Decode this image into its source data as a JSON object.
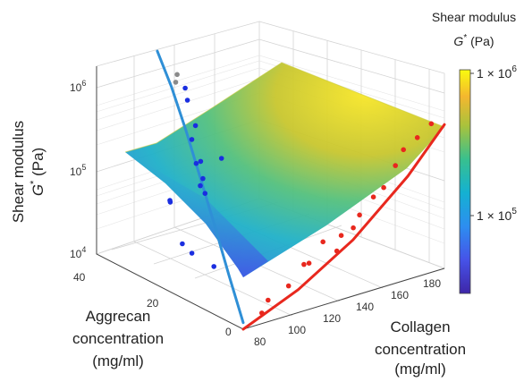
{
  "chart_data": {
    "type": "surface3d",
    "title": "",
    "zlabel_line1": "Shear modulus",
    "zlabel_symbol": "G",
    "zlabel_sup": "*",
    "zlabel_unit": " (Pa)",
    "xlabel": [
      "Collagen",
      "concentration",
      "(mg/ml)"
    ],
    "ylabel": [
      "Aggrecan",
      "concentration",
      "(mg/ml)"
    ],
    "xlim": [
      80,
      190
    ],
    "ylim": [
      0,
      50
    ],
    "zlim": [
      10000,
      2000000
    ],
    "zscale": "log",
    "x_ticks": [
      "80",
      "100",
      "120",
      "140",
      "160",
      "180"
    ],
    "y_ticks": [
      "0",
      "20",
      "40"
    ],
    "z_ticks": [
      {
        "base": "10",
        "exp": "4"
      },
      {
        "base": "10",
        "exp": "5"
      },
      {
        "base": "10",
        "exp": "6"
      }
    ],
    "colorbar": {
      "title_line1": "Shear modulus",
      "title_symbol": "G",
      "title_sup": "*",
      "title_unit": " (Pa)",
      "ticks": [
        {
          "base": "1 × 10",
          "exp": "5"
        },
        {
          "base": "1 × 10",
          "exp": "6"
        }
      ],
      "range": [
        30000,
        1000000
      ],
      "colormap": "parula"
    },
    "series": [
      {
        "kind": "scatter",
        "color": "#1a2ee0",
        "points": [
          {
            "x": 80,
            "y": 10,
            "z": 38000
          },
          {
            "x": 82,
            "y": 22,
            "z": 42000
          },
          {
            "x": 84,
            "y": 20,
            "z": 34000
          },
          {
            "x": 85,
            "y": 28,
            "z": 100000
          },
          {
            "x": 88,
            "y": 30,
            "z": 92000
          },
          {
            "x": 88,
            "y": 18,
            "z": 185000
          },
          {
            "x": 90,
            "y": 20,
            "z": 250000
          },
          {
            "x": 92,
            "y": 22,
            "z": 360000
          },
          {
            "x": 95,
            "y": 24,
            "z": 160000
          },
          {
            "x": 96,
            "y": 26,
            "z": 270000
          },
          {
            "x": 97,
            "y": 18,
            "z": 430000
          },
          {
            "x": 100,
            "y": 30,
            "z": 420000
          },
          {
            "x": 102,
            "y": 30,
            "z": 600000
          },
          {
            "x": 104,
            "y": 34,
            "z": 1000000
          },
          {
            "x": 106,
            "y": 36,
            "z": 1250000
          }
        ]
      },
      {
        "kind": "scatter",
        "color": "#e8281e",
        "points": [
          {
            "x": 95,
            "y": 3,
            "z": 11000
          },
          {
            "x": 100,
            "y": 4,
            "z": 14000
          },
          {
            "x": 108,
            "y": 2,
            "z": 20000
          },
          {
            "x": 118,
            "y": 3,
            "z": 30000
          },
          {
            "x": 124,
            "y": 5,
            "z": 26000
          },
          {
            "x": 130,
            "y": 4,
            "z": 45000
          },
          {
            "x": 136,
            "y": 3,
            "z": 33000
          },
          {
            "x": 140,
            "y": 4,
            "z": 46000
          },
          {
            "x": 145,
            "y": 3,
            "z": 55000
          },
          {
            "x": 150,
            "y": 4,
            "z": 70000
          },
          {
            "x": 156,
            "y": 3,
            "z": 110000
          },
          {
            "x": 160,
            "y": 2,
            "z": 140000
          },
          {
            "x": 168,
            "y": 3,
            "z": 220000
          },
          {
            "x": 174,
            "y": 4,
            "z": 300000
          },
          {
            "x": 180,
            "y": 3,
            "z": 400000
          },
          {
            "x": 186,
            "y": 2,
            "z": 560000
          }
        ]
      },
      {
        "kind": "scatter",
        "color": "#8a8a8a",
        "points": [
          {
            "x": 104,
            "y": 38,
            "z": 1400000
          },
          {
            "x": 108,
            "y": 40,
            "z": 1500000
          }
        ]
      },
      {
        "kind": "fit_line",
        "color": "#2f8fd6",
        "points": [
          {
            "x": 80,
            "y": 0,
            "z": 12000
          },
          {
            "x": 85,
            "y": 8,
            "z": 30000
          },
          {
            "x": 90,
            "y": 16,
            "z": 80000
          },
          {
            "x": 95,
            "y": 24,
            "z": 200000
          },
          {
            "x": 100,
            "y": 32,
            "z": 500000
          },
          {
            "x": 105,
            "y": 40,
            "z": 1100000
          },
          {
            "x": 110,
            "y": 48,
            "z": 2000000
          }
        ]
      },
      {
        "kind": "fit_line",
        "color": "#e8281e",
        "points": [
          {
            "x": 80,
            "y": 0,
            "z": 10000
          },
          {
            "x": 110,
            "y": 0,
            "z": 19000
          },
          {
            "x": 140,
            "y": 0,
            "z": 48000
          },
          {
            "x": 170,
            "y": 0,
            "z": 180000
          },
          {
            "x": 190,
            "y": 0,
            "z": 560000
          }
        ]
      }
    ],
    "grid": true
  }
}
